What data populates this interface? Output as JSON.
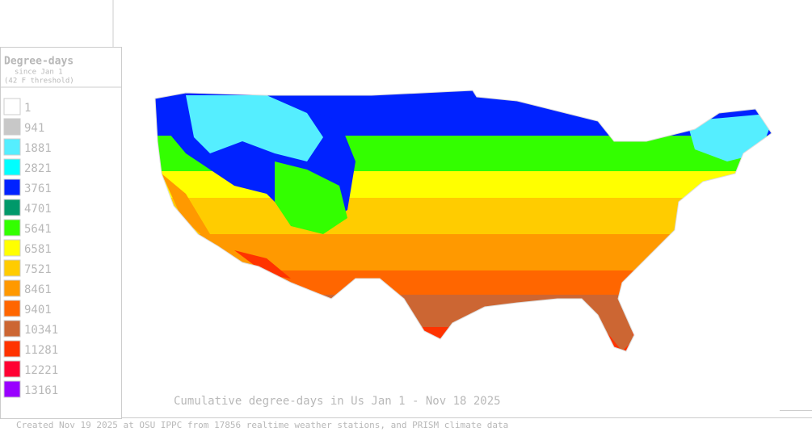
{
  "legend": {
    "title": "Degree-days",
    "subtitle": "since Jan 1",
    "note": "(42 F threshold)",
    "items": [
      {
        "label": 1,
        "color": "#ffffff"
      },
      {
        "label": 941,
        "color": "#c8c8c8"
      },
      {
        "label": 1881,
        "color": "#55eeff"
      },
      {
        "label": 2821,
        "color": "#00ffff"
      },
      {
        "label": 3761,
        "color": "#0022ff"
      },
      {
        "label": 4701,
        "color": "#00996a"
      },
      {
        "label": 5641,
        "color": "#33ff00"
      },
      {
        "label": 6581,
        "color": "#ffff00"
      },
      {
        "label": 7521,
        "color": "#ffcc00"
      },
      {
        "label": 8461,
        "color": "#ff9900"
      },
      {
        "label": 9401,
        "color": "#ff6600"
      },
      {
        "label": 10341,
        "color": "#cc6633"
      },
      {
        "label": 11281,
        "color": "#ff3300"
      },
      {
        "label": 12221,
        "color": "#ff0033"
      },
      {
        "label": 13161,
        "color": "#9900ff"
      }
    ]
  },
  "map": {
    "caption": "Cumulative degree-days in Us  Jan 1 - Nov 18 2025"
  },
  "footer": "Created Nov 19 2025 at OSU IPPC from 17856 realtime weather stations, and PRISM climate data"
}
